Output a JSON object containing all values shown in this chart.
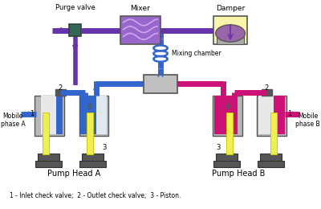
{
  "bg_color": "#ffffff",
  "gray": "#b8b8b8",
  "dark_gray": "#555555",
  "blue": "#3366cc",
  "purple": "#6633aa",
  "pink": "#cc1177",
  "yellow": "#eeee55",
  "green_dark": "#336655",
  "footnote": "1 - Inlet check valve;  2 - Outlet check valve;  3 - Piston.",
  "labels": {
    "purge_valve": "Purge valve",
    "mixer": "Mixer",
    "damper": "Damper",
    "mixing_chamber": "Mixing chamber",
    "pump_a": "Pump Head A",
    "pump_b": "Pump Head B",
    "mobile_a": "Mobile\nphase A",
    "mobile_b": "Mobile\nphase B"
  }
}
